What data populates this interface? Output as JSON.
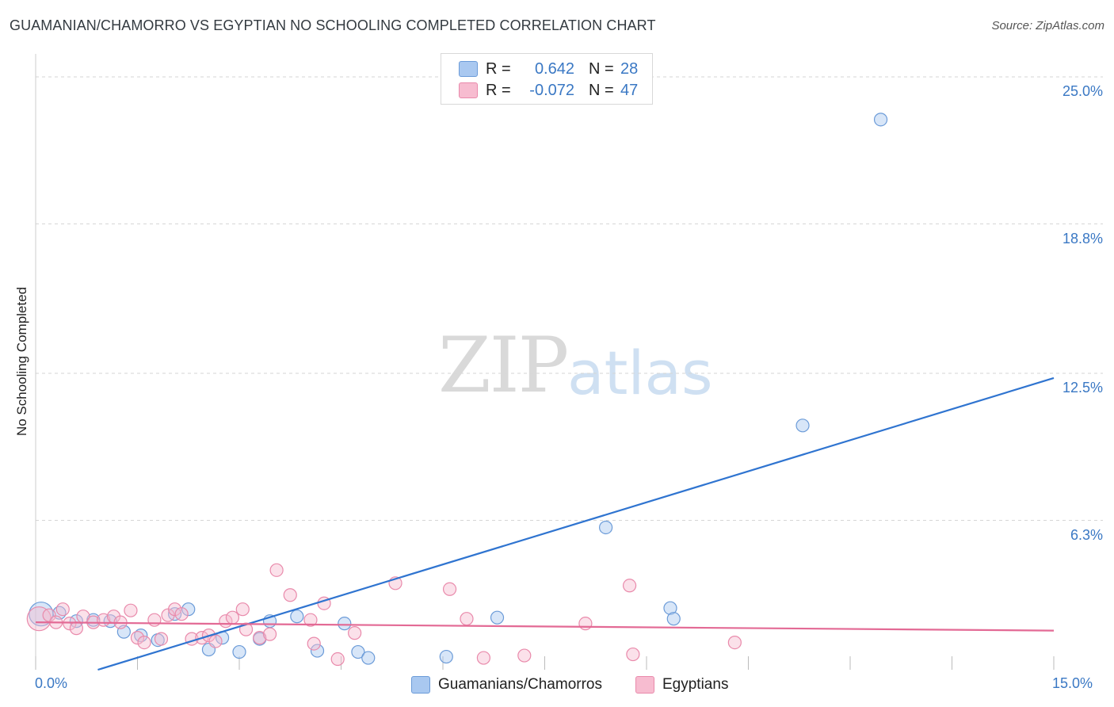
{
  "header": {
    "title": "GUAMANIAN/CHAMORRO VS EGYPTIAN NO SCHOOLING COMPLETED CORRELATION CHART",
    "source": "Source: ZipAtlas.com"
  },
  "watermark": {
    "zip": "ZIP",
    "atlas": "atlas"
  },
  "legend": {
    "rows": [
      {
        "r_label": "R =",
        "r_value": "0.642",
        "n_label": "N =",
        "n_value": "28",
        "color": "#a9c8f0",
        "border": "#6b9bd8"
      },
      {
        "r_label": "R =",
        "r_value": "-0.072",
        "n_label": "N =",
        "n_value": "47",
        "color": "#f7bcd0",
        "border": "#e98aab"
      }
    ]
  },
  "bottom_legend": {
    "items": [
      {
        "label": "Guamanians/Chamorros",
        "color": "#a9c8f0",
        "border": "#6b9bd8"
      },
      {
        "label": "Egyptians",
        "color": "#f7bcd0",
        "border": "#e98aab"
      }
    ]
  },
  "chart_data": {
    "type": "scatter",
    "title": "GUAMANIAN/CHAMORRO VS EGYPTIAN NO SCHOOLING COMPLETED CORRELATION CHART",
    "xlabel": "",
    "ylabel": "No Schooling Completed",
    "xlim": [
      0,
      15
    ],
    "ylim": [
      0,
      25
    ],
    "x_tick_labels": [
      "0.0%",
      "15.0%"
    ],
    "y_ticks": [
      6.3,
      12.5,
      18.8,
      25.0
    ],
    "y_tick_labels": [
      "6.3%",
      "12.5%",
      "18.8%",
      "25.0%"
    ],
    "grid": "horizontal dashed",
    "legend_position": "top-center",
    "series": [
      {
        "name": "Guamanians/Chamorros",
        "color": "#6b9bd8",
        "fill": "#a9c8f0",
        "trend": {
          "x": [
            0.0,
            15.0
          ],
          "y": [
            -0.8,
            12.3
          ],
          "color": "#2f74d0"
        },
        "points": [
          {
            "x": 0.08,
            "y": 2.35,
            "big": true
          },
          {
            "x": 0.35,
            "y": 2.4
          },
          {
            "x": 0.6,
            "y": 2.05
          },
          {
            "x": 0.85,
            "y": 2.1
          },
          {
            "x": 1.1,
            "y": 2.05
          },
          {
            "x": 1.3,
            "y": 1.6
          },
          {
            "x": 1.55,
            "y": 1.45
          },
          {
            "x": 1.8,
            "y": 1.25
          },
          {
            "x": 2.05,
            "y": 2.35
          },
          {
            "x": 2.25,
            "y": 2.55
          },
          {
            "x": 2.55,
            "y": 0.85
          },
          {
            "x": 2.75,
            "y": 1.35
          },
          {
            "x": 3.0,
            "y": 0.75
          },
          {
            "x": 3.3,
            "y": 1.3
          },
          {
            "x": 3.45,
            "y": 2.05
          },
          {
            "x": 3.85,
            "y": 2.25
          },
          {
            "x": 4.15,
            "y": 0.8
          },
          {
            "x": 4.55,
            "y": 1.95
          },
          {
            "x": 4.75,
            "y": 0.75
          },
          {
            "x": 4.9,
            "y": 0.5
          },
          {
            "x": 6.05,
            "y": 0.55
          },
          {
            "x": 6.8,
            "y": 2.2
          },
          {
            "x": 8.4,
            "y": 6.0
          },
          {
            "x": 9.35,
            "y": 2.6
          },
          {
            "x": 9.4,
            "y": 2.15
          },
          {
            "x": 11.3,
            "y": 10.3
          },
          {
            "x": 12.45,
            "y": 23.2
          }
        ]
      },
      {
        "name": "Egyptians",
        "color": "#e98aab",
        "fill": "#f7bcd0",
        "trend": {
          "x": [
            0.0,
            15.0
          ],
          "y": [
            2.0,
            1.65
          ],
          "color": "#e36a95"
        },
        "points": [
          {
            "x": 0.05,
            "y": 2.15,
            "big": true
          },
          {
            "x": 0.2,
            "y": 2.3
          },
          {
            "x": 0.3,
            "y": 2.0
          },
          {
            "x": 0.4,
            "y": 2.55
          },
          {
            "x": 0.5,
            "y": 1.95
          },
          {
            "x": 0.6,
            "y": 1.75
          },
          {
            "x": 0.7,
            "y": 2.25
          },
          {
            "x": 0.85,
            "y": 2.0
          },
          {
            "x": 1.0,
            "y": 2.1
          },
          {
            "x": 1.15,
            "y": 2.25
          },
          {
            "x": 1.25,
            "y": 2.0
          },
          {
            "x": 1.4,
            "y": 2.5
          },
          {
            "x": 1.5,
            "y": 1.35
          },
          {
            "x": 1.6,
            "y": 1.15
          },
          {
            "x": 1.75,
            "y": 2.1
          },
          {
            "x": 1.85,
            "y": 1.3
          },
          {
            "x": 1.95,
            "y": 2.3
          },
          {
            "x": 2.05,
            "y": 2.55
          },
          {
            "x": 2.15,
            "y": 2.35
          },
          {
            "x": 2.3,
            "y": 1.3
          },
          {
            "x": 2.45,
            "y": 1.35
          },
          {
            "x": 2.55,
            "y": 1.45
          },
          {
            "x": 2.65,
            "y": 1.2
          },
          {
            "x": 2.8,
            "y": 2.05
          },
          {
            "x": 2.9,
            "y": 2.2
          },
          {
            "x": 3.05,
            "y": 2.55
          },
          {
            "x": 3.1,
            "y": 1.7
          },
          {
            "x": 3.3,
            "y": 1.35
          },
          {
            "x": 3.45,
            "y": 1.5
          },
          {
            "x": 3.55,
            "y": 4.2
          },
          {
            "x": 3.75,
            "y": 3.15
          },
          {
            "x": 4.05,
            "y": 2.1
          },
          {
            "x": 4.1,
            "y": 1.1
          },
          {
            "x": 4.25,
            "y": 2.8
          },
          {
            "x": 4.45,
            "y": 0.45
          },
          {
            "x": 4.7,
            "y": 1.55
          },
          {
            "x": 5.3,
            "y": 3.65
          },
          {
            "x": 6.1,
            "y": 3.4
          },
          {
            "x": 6.35,
            "y": 2.15
          },
          {
            "x": 6.6,
            "y": 0.5
          },
          {
            "x": 7.2,
            "y": 0.6
          },
          {
            "x": 8.1,
            "y": 1.95
          },
          {
            "x": 8.75,
            "y": 3.55
          },
          {
            "x": 8.8,
            "y": 0.65
          },
          {
            "x": 10.3,
            "y": 1.15
          }
        ]
      }
    ]
  }
}
